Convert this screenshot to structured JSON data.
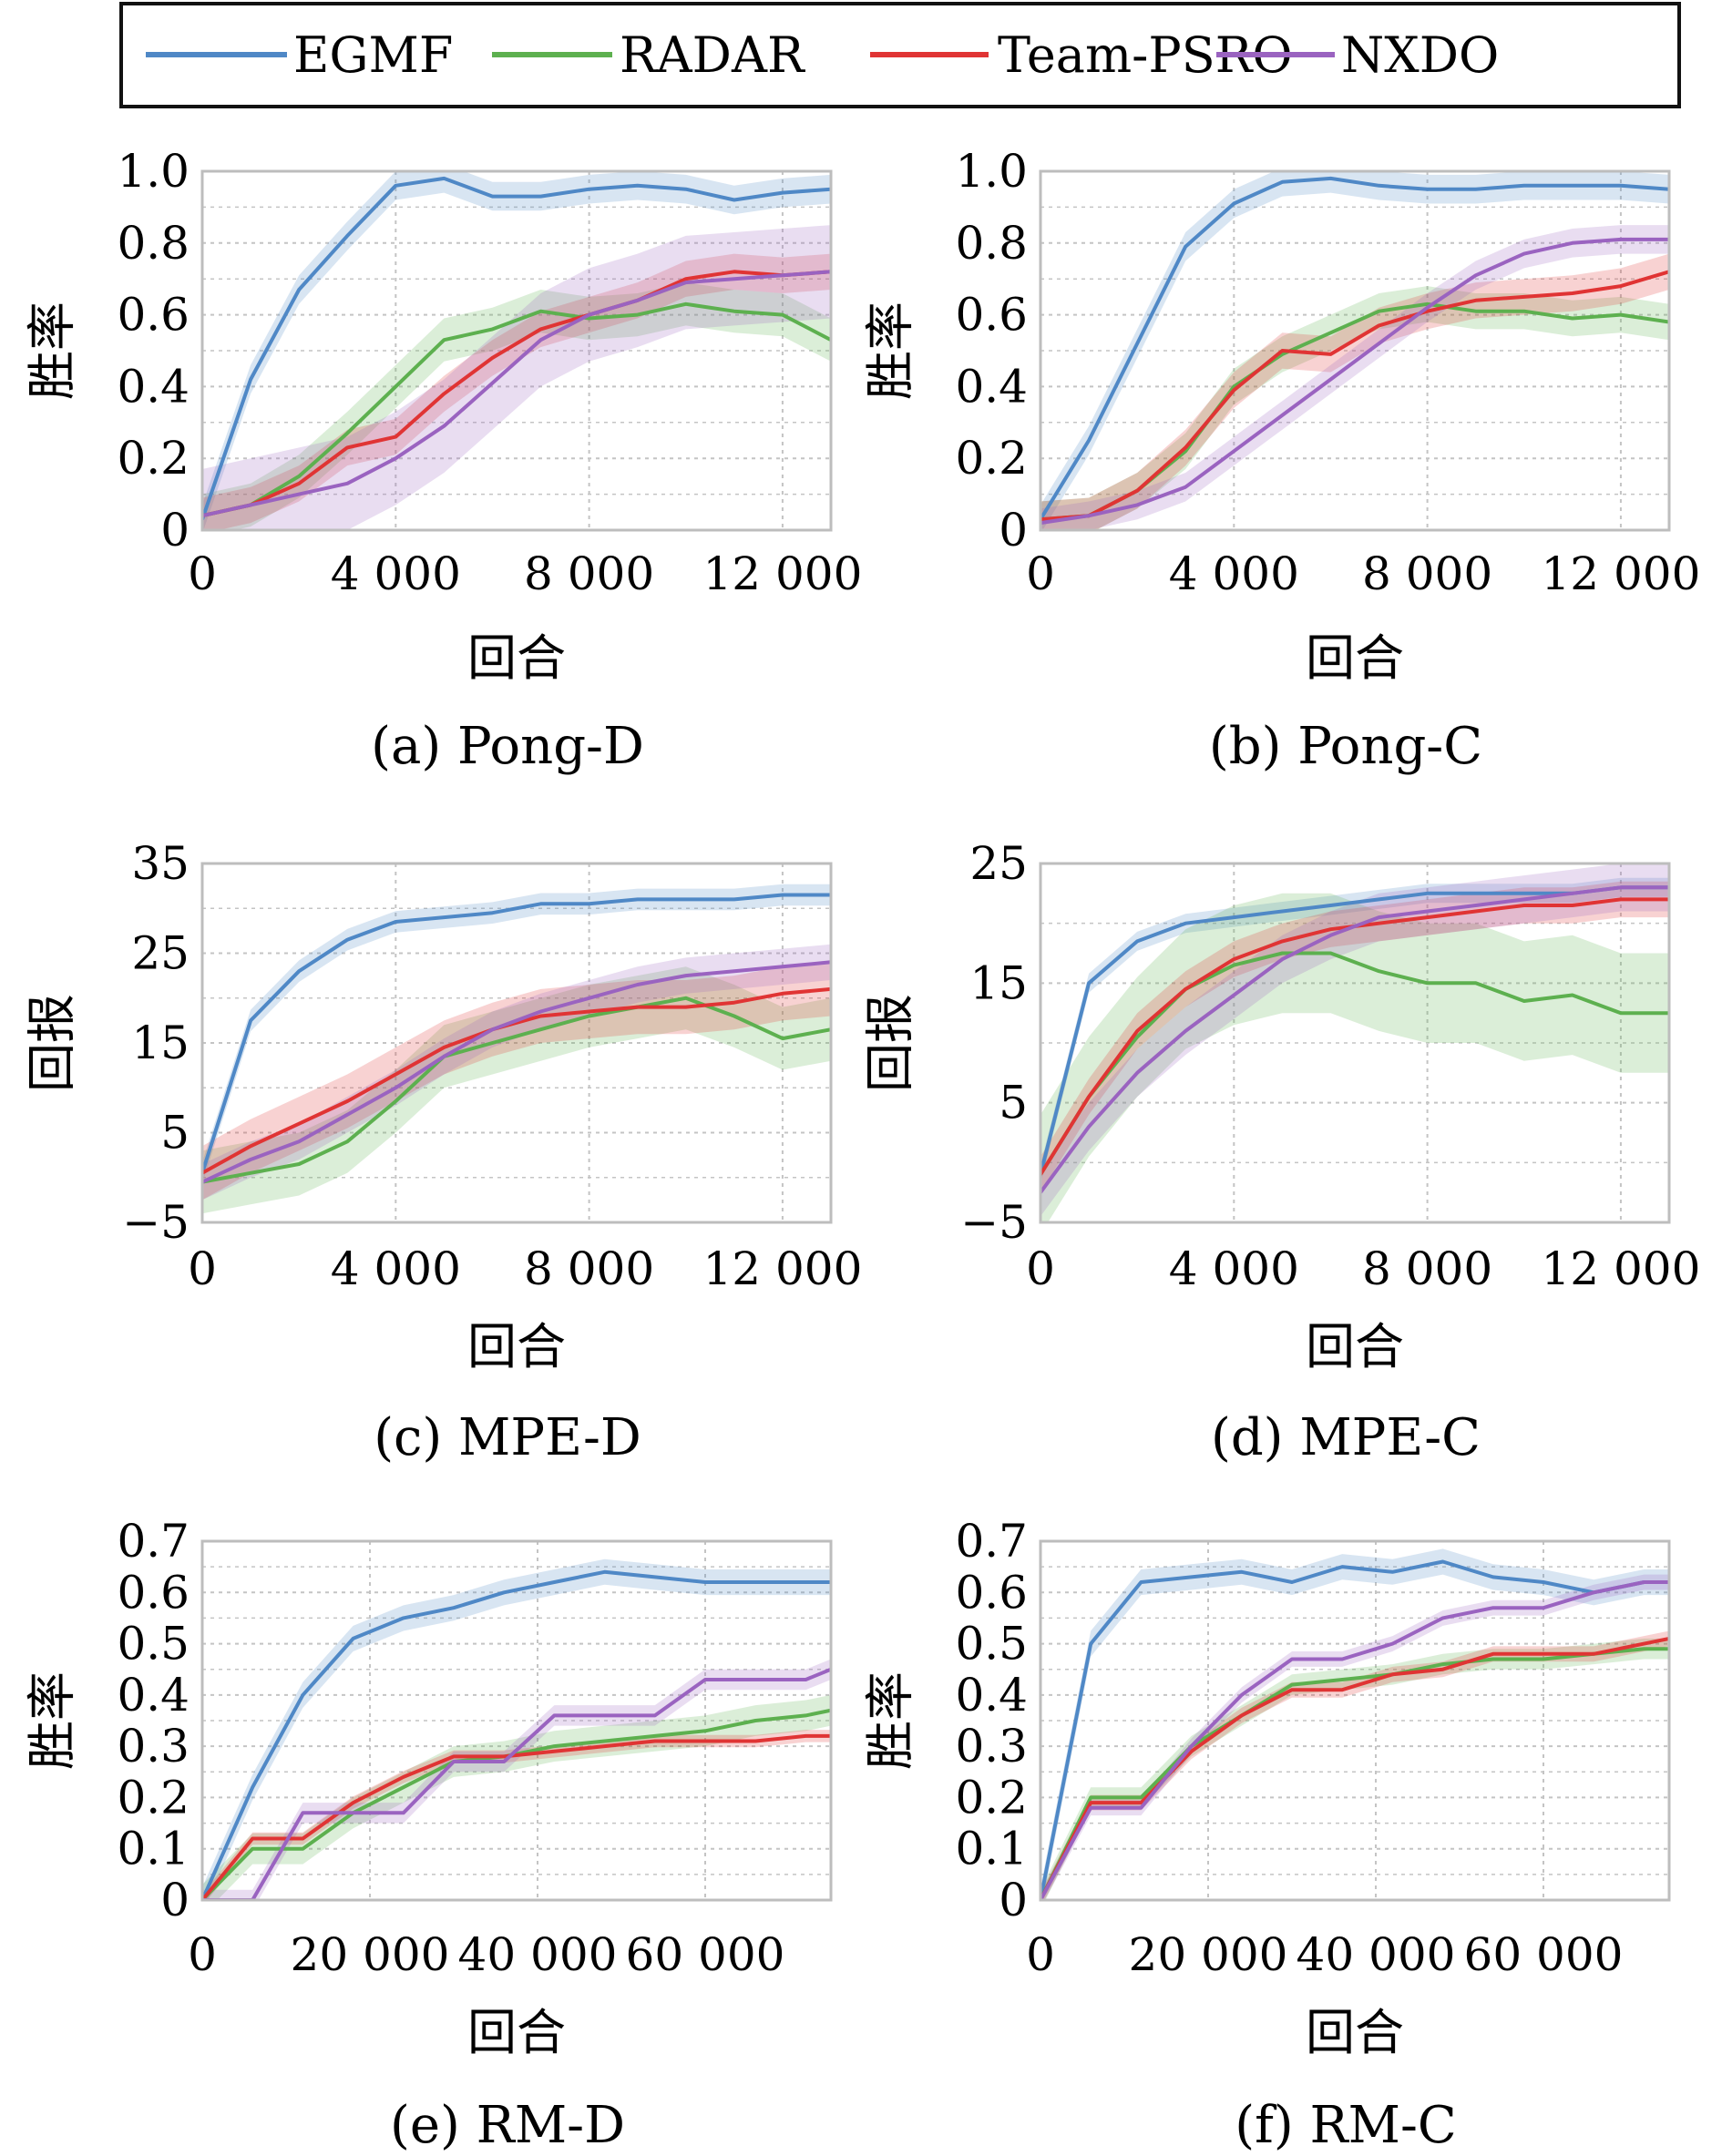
{
  "legend": {
    "entries": [
      {
        "name": "EGMF",
        "color": "#4f88c6"
      },
      {
        "name": "RADAR",
        "color": "#5db04f"
      },
      {
        "name": "Team-PSRO",
        "color": "#e03434"
      },
      {
        "name": "NXDO",
        "color": "#9a63c0"
      }
    ]
  },
  "chart_data": [
    {
      "type": "line",
      "caption": "(a) Pong-D",
      "xlabel": "回合",
      "ylabel": "胜率",
      "xlim": [
        0,
        13000
      ],
      "ylim": [
        0,
        1.0
      ],
      "xticks": [
        0,
        4000,
        8000,
        12000
      ],
      "xtick_labels": [
        "0",
        "4 000",
        "8 000",
        "12 000"
      ],
      "yticks": [
        0,
        0.2,
        0.4,
        0.6,
        0.8,
        1.0
      ],
      "ytick_labels": [
        "0",
        "0.2",
        "0.4",
        "0.6",
        "0.8",
        "1.0"
      ],
      "grid": true,
      "x": [
        0,
        1000,
        2000,
        3000,
        4000,
        5000,
        6000,
        7000,
        8000,
        9000,
        10000,
        11000,
        12000,
        13000
      ],
      "series": [
        {
          "name": "EGMF",
          "values": [
            0.03,
            0.42,
            0.67,
            0.82,
            0.96,
            0.98,
            0.93,
            0.93,
            0.95,
            0.96,
            0.95,
            0.92,
            0.94,
            0.95
          ],
          "band": 0.04
        },
        {
          "name": "RADAR",
          "values": [
            0.04,
            0.07,
            0.15,
            0.27,
            0.4,
            0.53,
            0.56,
            0.61,
            0.59,
            0.6,
            0.63,
            0.61,
            0.6,
            0.53
          ],
          "band": 0.06
        },
        {
          "name": "Team-PSRO",
          "values": [
            0.04,
            0.07,
            0.13,
            0.23,
            0.26,
            0.38,
            0.48,
            0.56,
            0.6,
            0.64,
            0.7,
            0.72,
            0.71,
            0.72
          ],
          "band": 0.05
        },
        {
          "name": "NXDO",
          "values": [
            0.04,
            0.07,
            0.1,
            0.13,
            0.2,
            0.29,
            0.41,
            0.53,
            0.6,
            0.64,
            0.69,
            0.7,
            0.71,
            0.72
          ],
          "band": 0.13
        }
      ]
    },
    {
      "type": "line",
      "caption": "(b) Pong-C",
      "xlabel": "回合",
      "ylabel": "胜率",
      "xlim": [
        0,
        13000
      ],
      "ylim": [
        0,
        1.0
      ],
      "xticks": [
        0,
        4000,
        8000,
        12000
      ],
      "xtick_labels": [
        "0",
        "4 000",
        "8 000",
        "12 000"
      ],
      "yticks": [
        0,
        0.2,
        0.4,
        0.6,
        0.8,
        1.0
      ],
      "ytick_labels": [
        "0",
        "0.2",
        "0.4",
        "0.6",
        "0.8",
        "1.0"
      ],
      "grid": true,
      "x": [
        0,
        1000,
        2000,
        3000,
        4000,
        5000,
        6000,
        7000,
        8000,
        9000,
        10000,
        11000,
        12000,
        13000
      ],
      "series": [
        {
          "name": "EGMF",
          "values": [
            0.03,
            0.25,
            0.52,
            0.79,
            0.91,
            0.97,
            0.98,
            0.96,
            0.95,
            0.95,
            0.96,
            0.96,
            0.96,
            0.95
          ],
          "band": 0.04
        },
        {
          "name": "RADAR",
          "values": [
            0.03,
            0.04,
            0.11,
            0.22,
            0.4,
            0.49,
            0.55,
            0.61,
            0.63,
            0.61,
            0.61,
            0.59,
            0.6,
            0.58
          ],
          "band": 0.05
        },
        {
          "name": "Team-PSRO",
          "values": [
            0.03,
            0.04,
            0.11,
            0.23,
            0.39,
            0.5,
            0.49,
            0.57,
            0.61,
            0.64,
            0.65,
            0.66,
            0.68,
            0.72
          ],
          "band": 0.05
        },
        {
          "name": "NXDO",
          "values": [
            0.02,
            0.04,
            0.07,
            0.12,
            0.22,
            0.32,
            0.42,
            0.52,
            0.62,
            0.71,
            0.77,
            0.8,
            0.81,
            0.81
          ],
          "band": 0.04
        }
      ]
    },
    {
      "type": "line",
      "caption": "(c) MPE-D",
      "xlabel": "回合",
      "ylabel": "回报",
      "xlim": [
        0,
        13000
      ],
      "ylim": [
        -5,
        35
      ],
      "xticks": [
        0,
        4000,
        8000,
        12000
      ],
      "xtick_labels": [
        "0",
        "4 000",
        "8 000",
        "12 000"
      ],
      "yticks": [
        -5,
        5,
        15,
        25,
        35
      ],
      "ytick_labels": [
        "−5",
        "5",
        "15",
        "25",
        "35"
      ],
      "grid": true,
      "x": [
        0,
        1000,
        2000,
        3000,
        4000,
        5000,
        6000,
        7000,
        8000,
        9000,
        10000,
        11000,
        12000,
        13000
      ],
      "series": [
        {
          "name": "EGMF",
          "values": [
            0.5,
            17.5,
            23.0,
            26.5,
            28.5,
            29.0,
            29.5,
            30.5,
            30.5,
            31.0,
            31.0,
            31.0,
            31.5,
            31.5
          ],
          "band": 1.2
        },
        {
          "name": "RADAR",
          "values": [
            -0.5,
            0.5,
            1.5,
            4.0,
            8.5,
            13.5,
            15.0,
            16.5,
            18.0,
            19.0,
            20.0,
            18.0,
            15.5,
            16.5
          ],
          "band": 3.5
        },
        {
          "name": "Team-PSRO",
          "values": [
            0.5,
            3.5,
            6.0,
            8.5,
            11.5,
            14.5,
            16.5,
            18.0,
            18.5,
            19.0,
            19.0,
            19.5,
            20.5,
            21.0
          ],
          "band": 3.0
        },
        {
          "name": "NXDO",
          "values": [
            -0.5,
            2.0,
            4.0,
            7.0,
            10.0,
            13.5,
            16.5,
            18.5,
            20.0,
            21.5,
            22.5,
            23.0,
            23.5,
            24.0
          ],
          "band": 2.0
        }
      ]
    },
    {
      "type": "line",
      "caption": "(d) MPE-C",
      "xlabel": "回合",
      "ylabel": "回报",
      "xlim": [
        0,
        13000
      ],
      "ylim": [
        -5,
        25
      ],
      "xticks": [
        0,
        4000,
        8000,
        12000
      ],
      "xtick_labels": [
        "0",
        "4 000",
        "8 000",
        "12 000"
      ],
      "yticks": [
        -5,
        5,
        15,
        25
      ],
      "ytick_labels": [
        "−5",
        "5",
        "15",
        "25"
      ],
      "grid": true,
      "x": [
        0,
        1000,
        2000,
        3000,
        4000,
        5000,
        6000,
        7000,
        8000,
        9000,
        10000,
        11000,
        12000,
        13000
      ],
      "series": [
        {
          "name": "EGMF",
          "values": [
            -1.0,
            15.0,
            18.5,
            20.0,
            20.5,
            21.0,
            21.5,
            22.0,
            22.5,
            22.5,
            22.5,
            22.5,
            23.0,
            23.0
          ],
          "band": 0.8
        },
        {
          "name": "RADAR",
          "values": [
            -1.0,
            5.5,
            10.5,
            14.5,
            16.5,
            17.5,
            17.5,
            16.0,
            15.0,
            15.0,
            13.5,
            14.0,
            12.5,
            12.5
          ],
          "band": 5.0
        },
        {
          "name": "Team-PSRO",
          "values": [
            -1.0,
            5.5,
            11.0,
            14.5,
            17.0,
            18.5,
            19.5,
            20.0,
            20.5,
            21.0,
            21.5,
            21.5,
            22.0,
            22.0
          ],
          "band": 1.5
        },
        {
          "name": "NXDO",
          "values": [
            -2.5,
            3.0,
            7.5,
            11.0,
            14.0,
            17.0,
            19.0,
            20.5,
            21.0,
            21.5,
            22.0,
            22.5,
            23.0,
            23.0
          ],
          "band": 2.0
        }
      ]
    },
    {
      "type": "line",
      "caption": "(e) RM-D",
      "xlabel": "回合",
      "ylabel": "胜率",
      "xlim": [
        0,
        75000
      ],
      "ylim": [
        0,
        0.7
      ],
      "xticks": [
        0,
        20000,
        40000,
        60000
      ],
      "xtick_labels": [
        "0",
        "20 000",
        "40 000",
        "60 000"
      ],
      "yticks": [
        0,
        0.1,
        0.2,
        0.3,
        0.4,
        0.5,
        0.6,
        0.7
      ],
      "ytick_labels": [
        "0",
        "0.1",
        "0.2",
        "0.3",
        "0.4",
        "0.5",
        "0.6",
        "0.7"
      ],
      "grid": true,
      "x": [
        0,
        6000,
        12000,
        18000,
        24000,
        30000,
        36000,
        42000,
        48000,
        54000,
        60000,
        66000,
        72000,
        75000
      ],
      "series": [
        {
          "name": "EGMF",
          "values": [
            0,
            0.22,
            0.4,
            0.51,
            0.55,
            0.57,
            0.6,
            0.62,
            0.64,
            0.63,
            0.62,
            0.62,
            0.62,
            0.62
          ],
          "band": 0.025
        },
        {
          "name": "RADAR",
          "values": [
            0,
            0.1,
            0.1,
            0.17,
            0.22,
            0.27,
            0.28,
            0.3,
            0.31,
            0.32,
            0.33,
            0.35,
            0.36,
            0.37
          ],
          "band": 0.03
        },
        {
          "name": "Team-PSRO",
          "values": [
            0,
            0.12,
            0.12,
            0.19,
            0.24,
            0.28,
            0.28,
            0.29,
            0.3,
            0.31,
            0.31,
            0.31,
            0.32,
            0.32
          ],
          "band": 0.012
        },
        {
          "name": "NXDO",
          "values": [
            0,
            0,
            0.17,
            0.17,
            0.17,
            0.27,
            0.27,
            0.36,
            0.36,
            0.36,
            0.43,
            0.43,
            0.43,
            0.45
          ],
          "band": 0.02
        }
      ]
    },
    {
      "type": "line",
      "caption": "(f) RM-C",
      "xlabel": "回合",
      "ylabel": "胜率",
      "xlim": [
        0,
        75000
      ],
      "ylim": [
        0,
        0.7
      ],
      "xticks": [
        0,
        20000,
        40000,
        60000
      ],
      "xtick_labels": [
        "0",
        "20 000",
        "40 000",
        "60 000"
      ],
      "yticks": [
        0,
        0.1,
        0.2,
        0.3,
        0.4,
        0.5,
        0.6,
        0.7
      ],
      "ytick_labels": [
        "0",
        "0.1",
        "0.2",
        "0.3",
        "0.4",
        "0.5",
        "0.6",
        "0.7"
      ],
      "grid": true,
      "x": [
        0,
        6000,
        12000,
        18000,
        24000,
        30000,
        36000,
        42000,
        48000,
        54000,
        60000,
        66000,
        72000,
        75000
      ],
      "series": [
        {
          "name": "EGMF",
          "values": [
            0,
            0.5,
            0.62,
            0.63,
            0.64,
            0.62,
            0.65,
            0.64,
            0.66,
            0.63,
            0.62,
            0.6,
            0.62,
            0.62
          ],
          "band": 0.025
        },
        {
          "name": "RADAR",
          "values": [
            0,
            0.2,
            0.2,
            0.3,
            0.36,
            0.42,
            0.43,
            0.44,
            0.46,
            0.47,
            0.47,
            0.48,
            0.49,
            0.49
          ],
          "band": 0.02
        },
        {
          "name": "Team-PSRO",
          "values": [
            0,
            0.19,
            0.19,
            0.29,
            0.36,
            0.41,
            0.41,
            0.44,
            0.45,
            0.48,
            0.48,
            0.48,
            0.5,
            0.51
          ],
          "band": 0.015
        },
        {
          "name": "NXDO",
          "values": [
            0,
            0.18,
            0.18,
            0.3,
            0.4,
            0.47,
            0.47,
            0.5,
            0.55,
            0.57,
            0.57,
            0.6,
            0.62,
            0.62
          ],
          "band": 0.015
        }
      ]
    }
  ]
}
